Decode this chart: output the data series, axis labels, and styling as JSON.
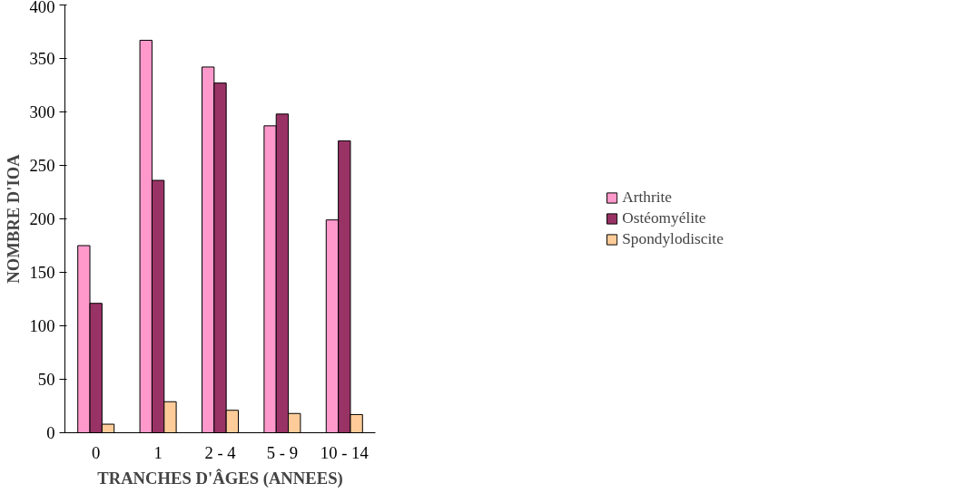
{
  "chart_data": {
    "type": "bar",
    "xlabel": "TRANCHES D'ÂGES (ANNEES)",
    "ylabel": "NOMBRE D'IOA",
    "categories": [
      "0",
      "1",
      "2 - 4",
      "5 - 9",
      "10 - 14"
    ],
    "series": [
      {
        "name": "Arthrite",
        "color": "#ff99cc",
        "values": [
          175,
          367,
          342,
          287,
          199
        ]
      },
      {
        "name": "Ostéomyélite",
        "color": "#993366",
        "values": [
          121,
          236,
          327,
          298,
          273
        ]
      },
      {
        "name": "Spondylodiscite",
        "color": "#ffcc99",
        "values": [
          8,
          29,
          21,
          18,
          17
        ]
      }
    ],
    "ylim": [
      0,
      400
    ],
    "yticks": [
      0,
      50,
      100,
      150,
      200,
      250,
      300,
      350,
      400
    ],
    "grid": false,
    "legend": "right"
  }
}
